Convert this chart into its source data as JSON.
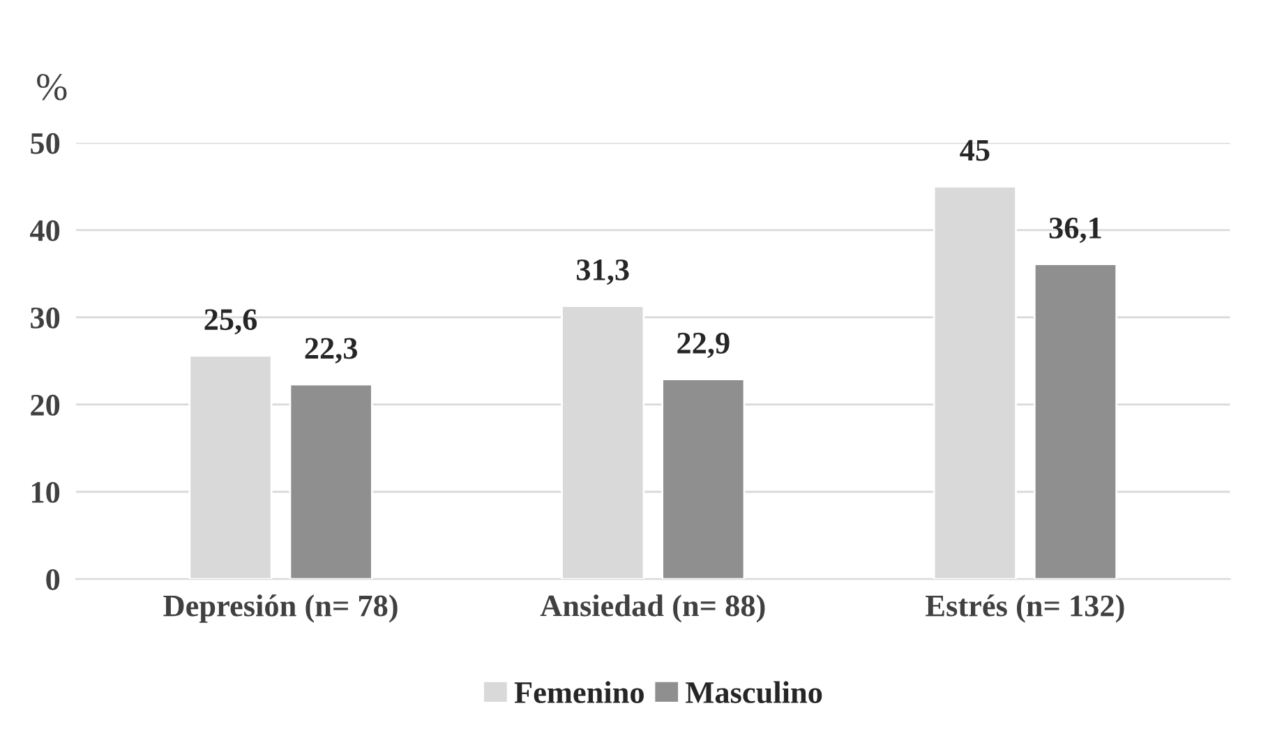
{
  "chart_data": {
    "type": "bar",
    "ylabel": "%",
    "categories": [
      "Depresión (n= 78)",
      "Ansiedad (n= 88)",
      "Estrés (n= 132)"
    ],
    "series": [
      {
        "name": "Femenino",
        "color": "#d9d9d9",
        "values": [
          25.6,
          31.3,
          45
        ],
        "value_labels": [
          "25,6",
          "31,3",
          "45"
        ]
      },
      {
        "name": "Masculino",
        "color": "#8f8f8f",
        "values": [
          22.3,
          22.9,
          36.1
        ],
        "value_labels": [
          "22,3",
          "22,9",
          "36,1"
        ]
      }
    ],
    "ylim": [
      0,
      50
    ],
    "yticks": [
      0,
      10,
      20,
      30,
      40,
      50
    ],
    "grid": "y",
    "legend": "bottom"
  }
}
